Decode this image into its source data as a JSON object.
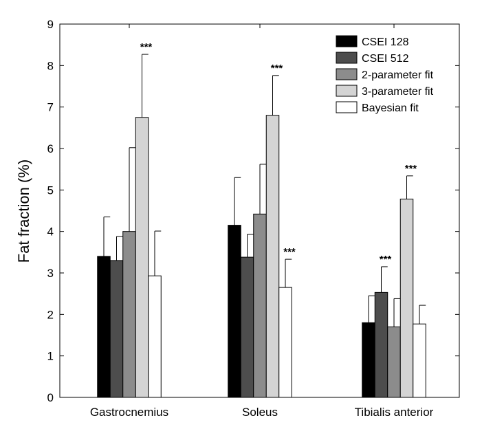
{
  "chart_data": {
    "type": "bar",
    "title": "",
    "xlabel": "",
    "ylabel": "Fat fraction (%)",
    "ylim": [
      0,
      9
    ],
    "yticks": [
      "0",
      "1",
      "2",
      "3",
      "4",
      "5",
      "6",
      "7",
      "8",
      "9"
    ],
    "grid": false,
    "legend_position": "top-right",
    "categories": [
      "Gastrocnemius",
      "Soleus",
      "Tibialis anterior"
    ],
    "series": [
      {
        "name": "CSEI 128",
        "color": "#000000",
        "values": [
          3.4,
          4.15,
          1.8
        ],
        "errors": [
          0.95,
          1.15,
          0.65
        ],
        "significance": [
          "",
          "",
          ""
        ]
      },
      {
        "name": "CSEI 512",
        "color": "#4d4d4d",
        "values": [
          3.3,
          3.38,
          2.53
        ],
        "errors": [
          0.58,
          0.55,
          0.62
        ],
        "significance": [
          "",
          "",
          "***"
        ]
      },
      {
        "name": "2-parameter fit",
        "color": "#8c8c8c",
        "values": [
          4.0,
          4.42,
          1.7
        ],
        "errors": [
          2.02,
          1.2,
          0.68
        ],
        "significance": [
          "",
          "",
          ""
        ]
      },
      {
        "name": "3-parameter fit",
        "color": "#d4d4d4",
        "values": [
          6.75,
          6.8,
          4.78
        ],
        "errors": [
          1.52,
          0.96,
          0.56
        ],
        "significance": [
          "***",
          "***",
          "***"
        ]
      },
      {
        "name": "Bayesian fit",
        "color": "#ffffff",
        "values": [
          2.93,
          2.65,
          1.77
        ],
        "errors": [
          1.08,
          0.68,
          0.45
        ],
        "significance": [
          "",
          "***",
          ""
        ]
      }
    ]
  }
}
